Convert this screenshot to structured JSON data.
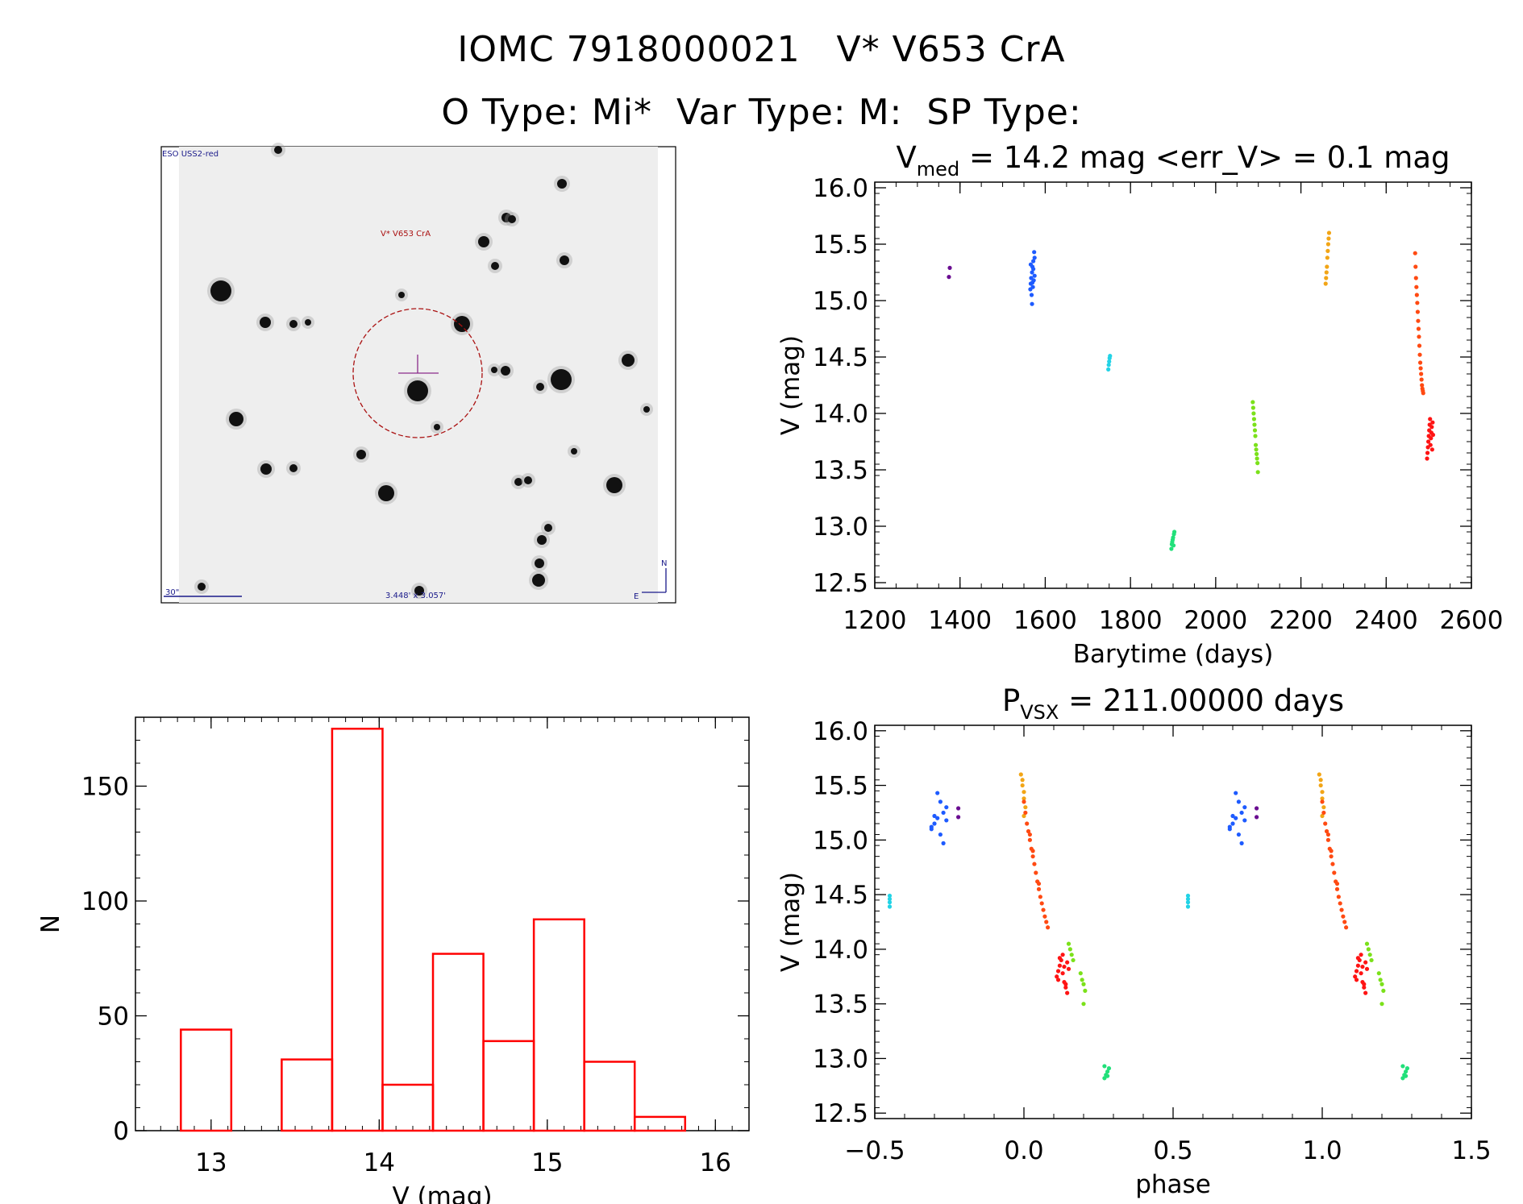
{
  "header": {
    "title": "IOMC 7918000021   V* V653 CrA",
    "subtitle": "O Type: Mi*  Var Type: M:  SP Type:"
  },
  "finder": {
    "survey_label": "ESO USS2-red",
    "target_label": "V* V653 CrA",
    "scale_label": "30\"",
    "size_label": "3.448' x 3.057'",
    "north_label": "N",
    "east_label": "E"
  },
  "chart_data": [
    {
      "type": "scatter",
      "name": "light-curve",
      "title": "V_med = 14.2 mag <err_V> = 0.1 mag",
      "title_parts": {
        "pre": "V",
        "sub": "med",
        "post": " = 14.2 mag <err_V> = 0.1 mag"
      },
      "xlabel": "Barytime (days)",
      "ylabel": "V (mag)",
      "xlim": [
        1200,
        2600
      ],
      "ylim": [
        16.05,
        12.45
      ],
      "xticks": [
        1200,
        1400,
        1600,
        1800,
        2000,
        2200,
        2400,
        2600
      ],
      "yticks": [
        12.5,
        13.0,
        13.5,
        14.0,
        14.5,
        15.0,
        15.5,
        16.0
      ],
      "groups": [
        {
          "color": "#6a0d91",
          "x": [
            1374,
            1376
          ],
          "y": [
            15.21,
            15.29
          ]
        },
        {
          "color": "#1e5bff",
          "x": [
            1565,
            1566,
            1567,
            1568,
            1569,
            1570,
            1571,
            1572,
            1573,
            1574,
            1575,
            1566,
            1569,
            1572,
            1575,
            1570
          ],
          "y": [
            15.1,
            15.15,
            15.2,
            15.05,
            15.25,
            15.3,
            15.12,
            15.35,
            15.18,
            15.43,
            15.22,
            15.32,
            14.97,
            15.28,
            15.38,
            15.16
          ]
        },
        {
          "color": "#22d3e6",
          "x": [
            1748,
            1749,
            1750,
            1751,
            1752
          ],
          "y": [
            14.39,
            14.43,
            14.46,
            14.49,
            14.51
          ]
        },
        {
          "color": "#22e07a",
          "x": [
            1896,
            1897,
            1898,
            1899,
            1900,
            1901,
            1902,
            1903
          ],
          "y": [
            12.8,
            12.84,
            12.86,
            12.88,
            12.9,
            12.83,
            12.93,
            12.95
          ]
        },
        {
          "color": "#7be11a",
          "x": [
            2087,
            2088,
            2089,
            2090,
            2091,
            2092,
            2093,
            2094,
            2095,
            2096,
            2097,
            2098,
            2099
          ],
          "y": [
            14.1,
            14.05,
            14.0,
            13.95,
            13.9,
            13.85,
            13.8,
            13.72,
            13.68,
            13.64,
            13.6,
            13.56,
            13.48
          ]
        },
        {
          "color": "#f2a516",
          "x": [
            2258,
            2259,
            2260,
            2261,
            2262,
            2263,
            2264,
            2265,
            2266
          ],
          "y": [
            15.15,
            15.2,
            15.25,
            15.3,
            15.38,
            15.44,
            15.5,
            15.55,
            15.6
          ]
        },
        {
          "color": "#ff4a12",
          "x": [
            2468,
            2469,
            2470,
            2471,
            2472,
            2473,
            2474,
            2475,
            2476,
            2477,
            2478,
            2479,
            2480,
            2481,
            2482,
            2483,
            2484,
            2485,
            2486,
            2487
          ],
          "y": [
            15.42,
            15.3,
            15.2,
            15.12,
            15.05,
            14.98,
            14.9,
            14.82,
            14.75,
            14.68,
            14.6,
            14.52,
            14.45,
            14.4,
            14.35,
            14.3,
            14.25,
            14.22,
            14.2,
            14.18
          ]
        },
        {
          "color": "#ff1414",
          "x": [
            2496,
            2497,
            2498,
            2499,
            2500,
            2501,
            2502,
            2503,
            2504,
            2505,
            2506,
            2507,
            2508,
            2509,
            2510
          ],
          "y": [
            13.6,
            13.65,
            13.7,
            13.75,
            13.8,
            13.85,
            13.9,
            13.95,
            13.72,
            13.78,
            13.83,
            13.88,
            13.68,
            13.92,
            13.81
          ]
        }
      ]
    },
    {
      "type": "bar",
      "name": "histogram",
      "xlabel": "V (mag)",
      "ylabel": "N",
      "xlim": [
        12.55,
        16.2
      ],
      "ylim": [
        0,
        180
      ],
      "xticks": [
        13,
        14,
        15,
        16
      ],
      "yticks": [
        0,
        50,
        100,
        150
      ],
      "bin_edges": [
        12.82,
        13.12,
        13.42,
        13.72,
        14.02,
        14.32,
        14.62,
        14.92,
        15.22,
        15.52,
        15.82
      ],
      "counts": [
        44,
        0,
        31,
        175,
        20,
        77,
        39,
        92,
        30,
        6
      ],
      "color": "#ff0000"
    },
    {
      "type": "scatter",
      "name": "phased-curve",
      "title": "P_vsx = 211.00000 days",
      "title_parts": {
        "pre": "P",
        "sub": "VSX",
        "post": " = 211.00000 days"
      },
      "xlabel": "phase",
      "ylabel": "V (mag)",
      "xlim": [
        -0.5,
        1.5
      ],
      "ylim": [
        16.05,
        12.45
      ],
      "xticks": [
        -0.5,
        0.0,
        0.5,
        1.0,
        1.5
      ],
      "xtick_labels": [
        "−0.5",
        "0.0",
        "0.5",
        "1.0",
        "1.5"
      ],
      "yticks": [
        12.5,
        13.0,
        13.5,
        14.0,
        14.5,
        15.0,
        15.5,
        16.0
      ],
      "period_repeat": 1.0,
      "groups": [
        {
          "color": "#6a0d91",
          "x": [
            -0.22,
            -0.22
          ],
          "y": [
            15.21,
            15.29
          ]
        },
        {
          "color": "#1e5bff",
          "x": [
            -0.31,
            -0.3,
            -0.29,
            -0.28,
            -0.27,
            -0.26,
            -0.31,
            -0.28,
            -0.26,
            -0.29,
            -0.27,
            -0.3
          ],
          "y": [
            15.1,
            15.15,
            15.2,
            15.05,
            15.25,
            15.3,
            15.12,
            15.35,
            15.18,
            15.43,
            14.97,
            15.22
          ]
        },
        {
          "color": "#22d3e6",
          "x": [
            -0.45,
            -0.45,
            -0.45,
            -0.45
          ],
          "y": [
            14.39,
            14.43,
            14.46,
            14.49
          ]
        },
        {
          "color": "#22e07a",
          "x": [
            0.27,
            0.275,
            0.28,
            0.285,
            0.27,
            0.28
          ],
          "y": [
            12.82,
            12.85,
            12.88,
            12.91,
            12.93,
            12.84
          ]
        },
        {
          "color": "#7be11a",
          "x": [
            0.15,
            0.155,
            0.16,
            0.165,
            0.19,
            0.195,
            0.2,
            0.205,
            0.2
          ],
          "y": [
            14.05,
            14.0,
            13.95,
            13.9,
            13.78,
            13.72,
            13.68,
            13.62,
            13.5
          ]
        },
        {
          "color": "#f2a516",
          "x": [
            -0.01,
            -0.005,
            0.0,
            0.0,
            0.005,
            0.0,
            -0.005
          ],
          "y": [
            15.6,
            15.5,
            15.44,
            15.38,
            15.3,
            15.22,
            15.55
          ]
        },
        {
          "color": "#ff4a12",
          "x": [
            0.0,
            0.005,
            0.01,
            0.015,
            0.02,
            0.025,
            0.03,
            0.035,
            0.04,
            0.045,
            0.05,
            0.055,
            0.06,
            0.065,
            0.07,
            0.075,
            0.08,
            0.02,
            0.03,
            0.05
          ],
          "y": [
            15.35,
            15.25,
            15.15,
            15.08,
            15.0,
            14.92,
            14.85,
            14.78,
            14.7,
            14.62,
            14.55,
            14.48,
            14.42,
            14.36,
            14.3,
            14.25,
            14.2,
            15.05,
            14.9,
            14.6
          ]
        },
        {
          "color": "#ff1414",
          "x": [
            0.11,
            0.115,
            0.12,
            0.125,
            0.13,
            0.135,
            0.14,
            0.145,
            0.15,
            0.115,
            0.13,
            0.145,
            0.12,
            0.14,
            0.135
          ],
          "y": [
            13.75,
            13.8,
            13.85,
            13.9,
            13.95,
            13.7,
            13.65,
            13.6,
            13.82,
            13.72,
            13.78,
            13.88,
            13.92,
            13.68,
            13.84
          ]
        }
      ]
    }
  ]
}
